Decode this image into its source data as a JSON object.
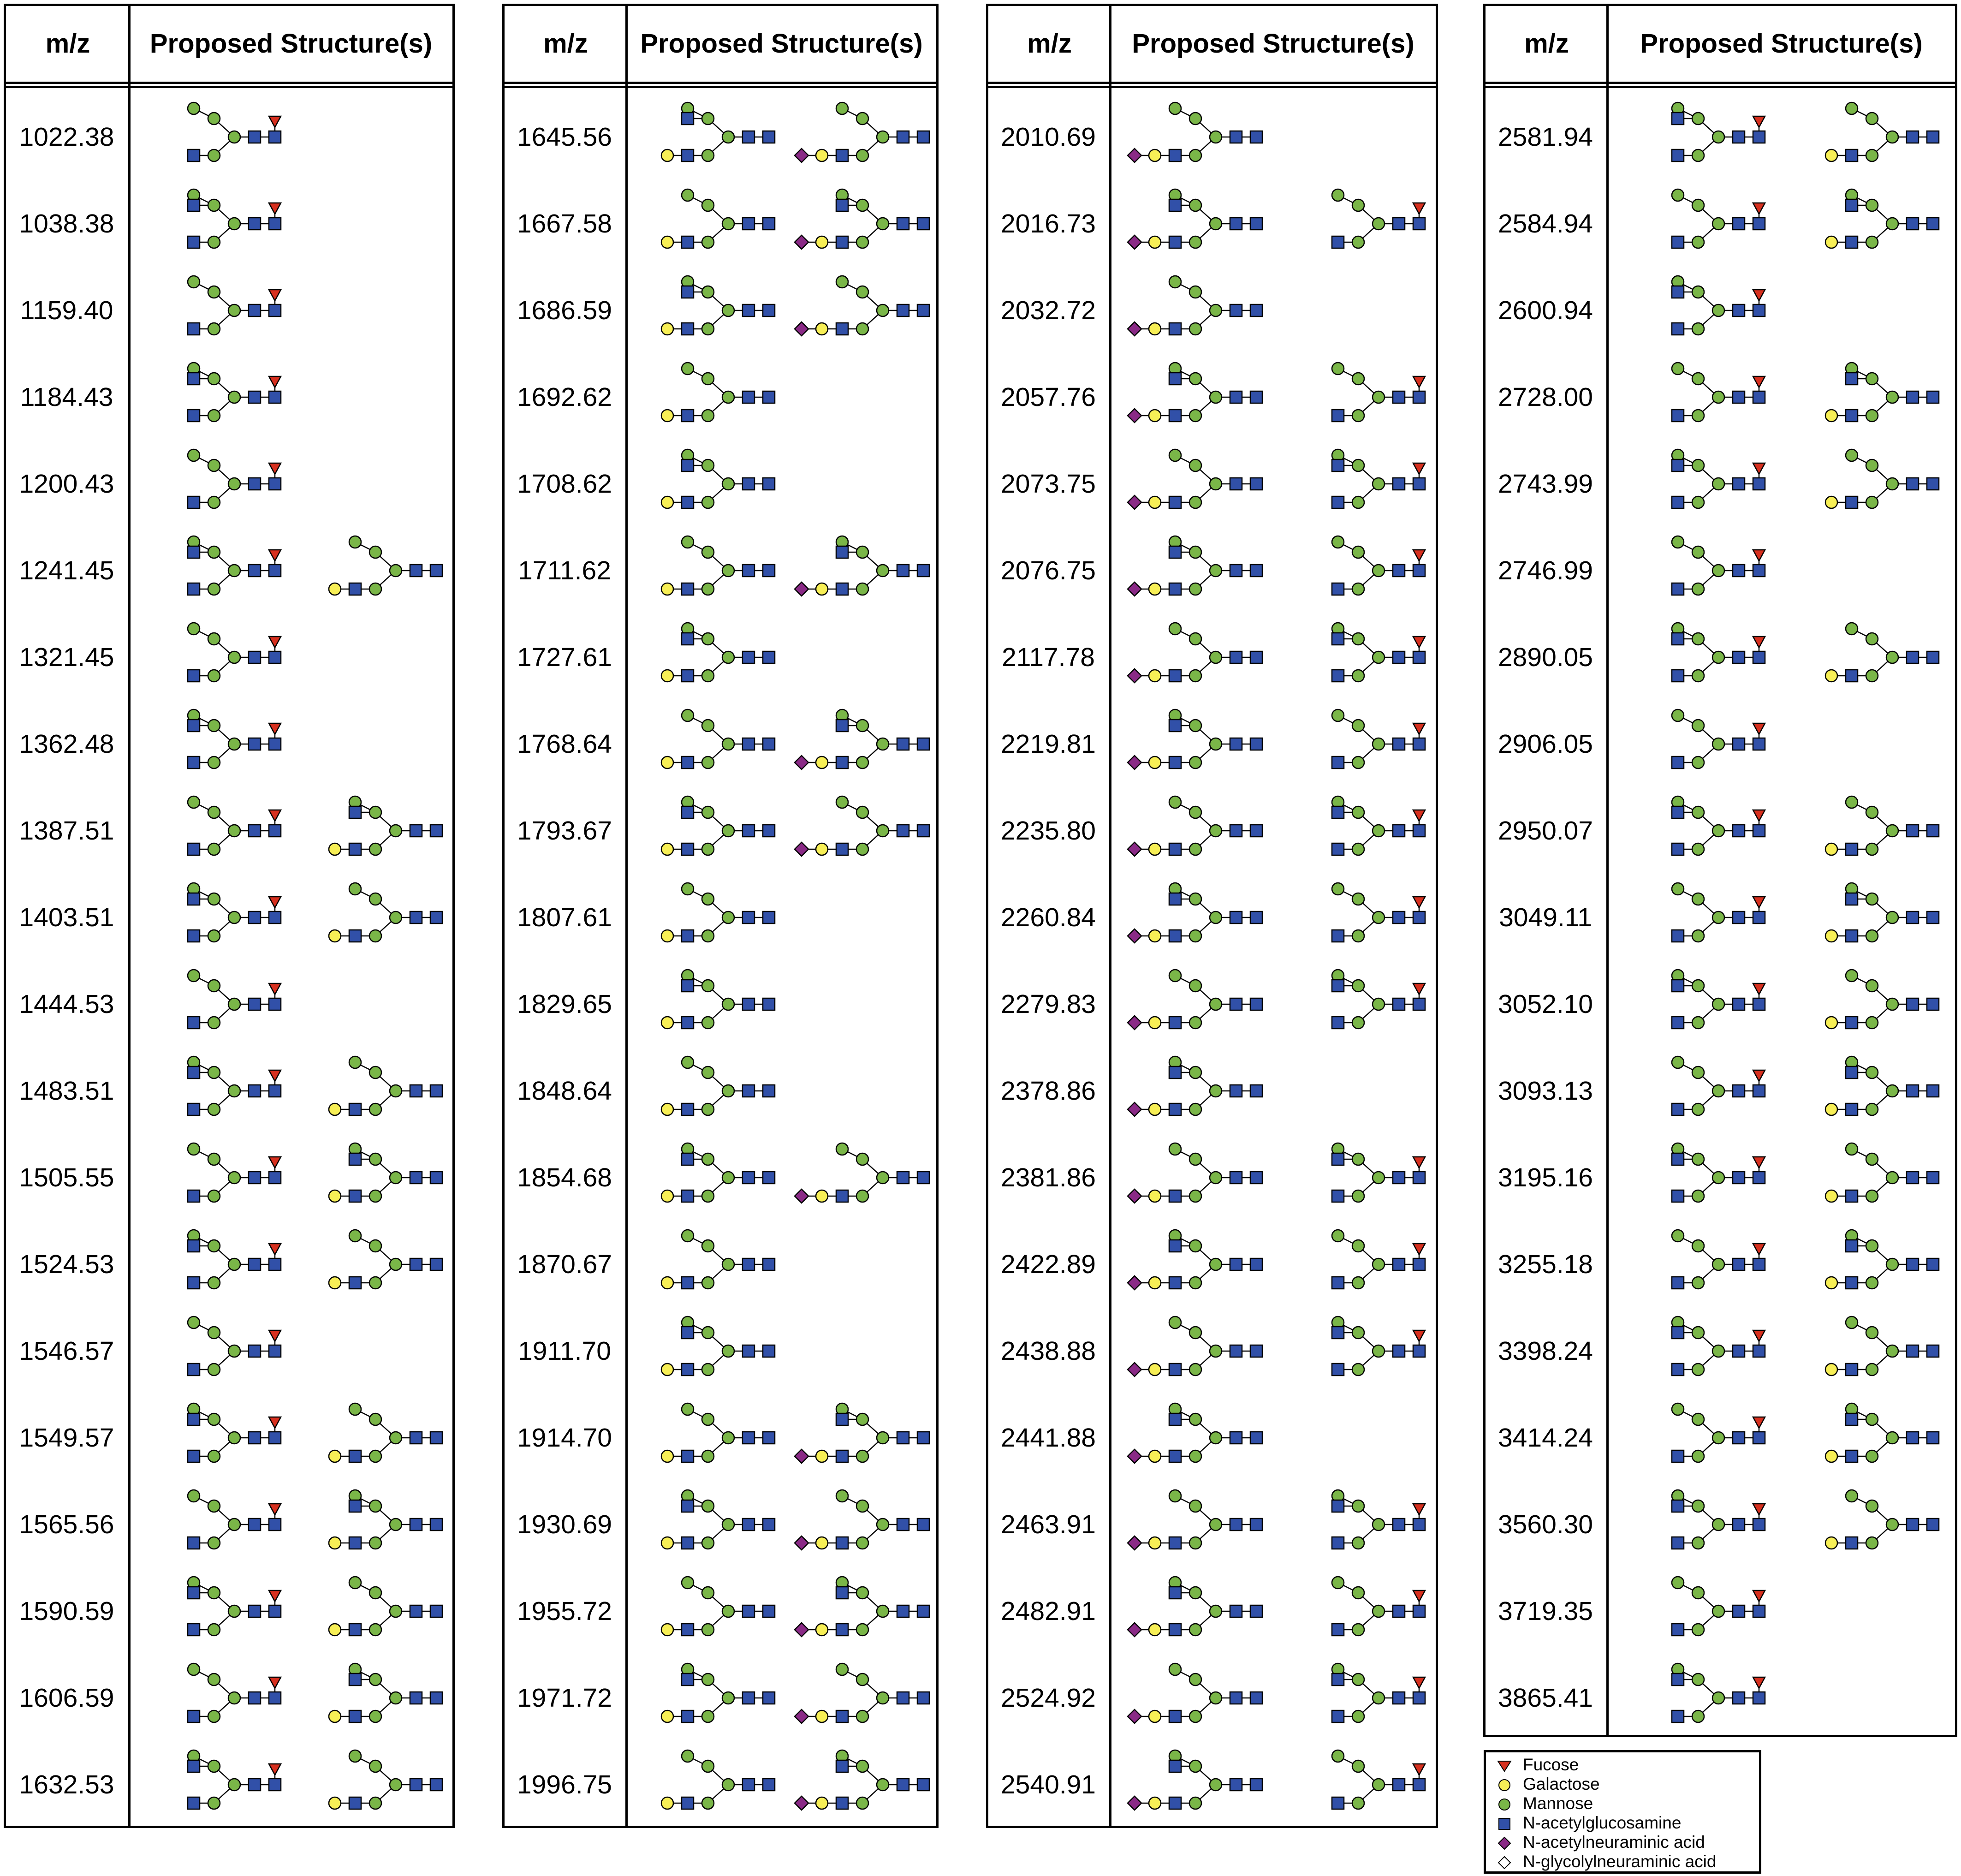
{
  "header": {
    "mz_label": "m/z",
    "structures_label": "Proposed Structure(s)"
  },
  "colors": {
    "fucose": "#d7301f",
    "galactose": "#f7ef56",
    "mannose": "#7ab648",
    "glcnac": "#3150a8",
    "neu5ac": "#8a2a86",
    "neu5gc": "#ffffff",
    "line": "#000000"
  },
  "columns": [
    {
      "rows": [
        {
          "mz": "1022.38",
          "structures": [
            "s1"
          ]
        },
        {
          "mz": "1038.38",
          "structures": [
            "s1"
          ]
        },
        {
          "mz": "1159.40",
          "structures": [
            "s1"
          ]
        },
        {
          "mz": "1184.43",
          "structures": [
            "s1"
          ]
        },
        {
          "mz": "1200.43",
          "structures": [
            "s1"
          ]
        },
        {
          "mz": "1241.45",
          "structures": [
            "s1",
            "s2"
          ]
        },
        {
          "mz": "1321.45",
          "structures": [
            "s1"
          ]
        },
        {
          "mz": "1362.48",
          "structures": [
            "s1"
          ]
        },
        {
          "mz": "1387.51",
          "structures": [
            "s1",
            "s2"
          ]
        },
        {
          "mz": "1403.51",
          "structures": [
            "s1",
            "s2"
          ]
        },
        {
          "mz": "1444.53",
          "structures": [
            "s1"
          ]
        },
        {
          "mz": "1483.51",
          "structures": [
            "s1",
            "s2"
          ]
        },
        {
          "mz": "1505.55",
          "structures": [
            "s1",
            "s2"
          ]
        },
        {
          "mz": "1524.53",
          "structures": [
            "s1",
            "s2"
          ]
        },
        {
          "mz": "1546.57",
          "structures": [
            "s1"
          ]
        },
        {
          "mz": "1549.57",
          "structures": [
            "s1",
            "s2"
          ]
        },
        {
          "mz": "1565.56",
          "structures": [
            "s1",
            "s2"
          ]
        },
        {
          "mz": "1590.59",
          "structures": [
            "s1",
            "s2"
          ]
        },
        {
          "mz": "1606.59",
          "structures": [
            "s1",
            "s2"
          ]
        },
        {
          "mz": "1632.53",
          "structures": [
            "s1",
            "s2"
          ]
        }
      ]
    },
    {
      "rows": [
        {
          "mz": "1645.56",
          "structures": [
            "s1",
            "s2"
          ]
        },
        {
          "mz": "1667.58",
          "structures": [
            "s1",
            "s2"
          ]
        },
        {
          "mz": "1686.59",
          "structures": [
            "s1",
            "s2"
          ]
        },
        {
          "mz": "1692.62",
          "structures": [
            "s1"
          ]
        },
        {
          "mz": "1708.62",
          "structures": [
            "s1"
          ]
        },
        {
          "mz": "1711.62",
          "structures": [
            "s1",
            "s2"
          ]
        },
        {
          "mz": "1727.61",
          "structures": [
            "s1"
          ]
        },
        {
          "mz": "1768.64",
          "structures": [
            "s1",
            "s2"
          ]
        },
        {
          "mz": "1793.67",
          "structures": [
            "s1",
            "s2"
          ]
        },
        {
          "mz": "1807.61",
          "structures": [
            "s1"
          ]
        },
        {
          "mz": "1829.65",
          "structures": [
            "s1"
          ]
        },
        {
          "mz": "1848.64",
          "structures": [
            "s1"
          ]
        },
        {
          "mz": "1854.68",
          "structures": [
            "s1",
            "s2"
          ]
        },
        {
          "mz": "1870.67",
          "structures": [
            "s1"
          ]
        },
        {
          "mz": "1911.70",
          "structures": [
            "s1"
          ]
        },
        {
          "mz": "1914.70",
          "structures": [
            "s1",
            "s2"
          ]
        },
        {
          "mz": "1930.69",
          "structures": [
            "s1",
            "s2"
          ]
        },
        {
          "mz": "1955.72",
          "structures": [
            "s1",
            "s2"
          ]
        },
        {
          "mz": "1971.72",
          "structures": [
            "s1",
            "s2"
          ]
        },
        {
          "mz": "1996.75",
          "structures": [
            "s1",
            "s2"
          ]
        }
      ]
    },
    {
      "rows": [
        {
          "mz": "2010.69",
          "structures": [
            "s1"
          ]
        },
        {
          "mz": "2016.73",
          "structures": [
            "s1",
            "s2"
          ]
        },
        {
          "mz": "2032.72",
          "structures": [
            "s1"
          ]
        },
        {
          "mz": "2057.76",
          "structures": [
            "s1",
            "s2"
          ]
        },
        {
          "mz": "2073.75",
          "structures": [
            "s1",
            "s2"
          ]
        },
        {
          "mz": "2076.75",
          "structures": [
            "s1",
            "s2"
          ]
        },
        {
          "mz": "2117.78",
          "structures": [
            "s1",
            "s2"
          ]
        },
        {
          "mz": "2219.81",
          "structures": [
            "s1",
            "s2"
          ]
        },
        {
          "mz": "2235.80",
          "structures": [
            "s1",
            "s2"
          ]
        },
        {
          "mz": "2260.84",
          "structures": [
            "s1",
            "s2"
          ]
        },
        {
          "mz": "2279.83",
          "structures": [
            "s1",
            "s2"
          ]
        },
        {
          "mz": "2378.86",
          "structures": [
            "s1"
          ]
        },
        {
          "mz": "2381.86",
          "structures": [
            "s1",
            "s2"
          ]
        },
        {
          "mz": "2422.89",
          "structures": [
            "s1",
            "s2"
          ]
        },
        {
          "mz": "2438.88",
          "structures": [
            "s1",
            "s2"
          ]
        },
        {
          "mz": "2441.88",
          "structures": [
            "s1"
          ]
        },
        {
          "mz": "2463.91",
          "structures": [
            "s1",
            "s2"
          ]
        },
        {
          "mz": "2482.91",
          "structures": [
            "s1",
            "s2"
          ]
        },
        {
          "mz": "2524.92",
          "structures": [
            "s1",
            "s2"
          ]
        },
        {
          "mz": "2540.91",
          "structures": [
            "s1",
            "s2"
          ]
        }
      ]
    },
    {
      "rows": [
        {
          "mz": "2581.94",
          "structures": [
            "s1",
            "s2"
          ]
        },
        {
          "mz": "2584.94",
          "structures": [
            "s1",
            "s2"
          ]
        },
        {
          "mz": "2600.94",
          "structures": [
            "s1"
          ]
        },
        {
          "mz": "2728.00",
          "structures": [
            "s1",
            "s2"
          ]
        },
        {
          "mz": "2743.99",
          "structures": [
            "s1",
            "s2"
          ]
        },
        {
          "mz": "2746.99",
          "structures": [
            "s1"
          ]
        },
        {
          "mz": "2890.05",
          "structures": [
            "s1",
            "s2"
          ]
        },
        {
          "mz": "2906.05",
          "structures": [
            "s1"
          ]
        },
        {
          "mz": "2950.07",
          "structures": [
            "s1",
            "s2"
          ]
        },
        {
          "mz": "3049.11",
          "structures": [
            "s1",
            "s2"
          ]
        },
        {
          "mz": "3052.10",
          "structures": [
            "s1",
            "s2"
          ]
        },
        {
          "mz": "3093.13",
          "structures": [
            "s1",
            "s2"
          ]
        },
        {
          "mz": "3195.16",
          "structures": [
            "s1",
            "s2"
          ]
        },
        {
          "mz": "3255.18",
          "structures": [
            "s1",
            "s2"
          ]
        },
        {
          "mz": "3398.24",
          "structures": [
            "s1",
            "s2"
          ]
        },
        {
          "mz": "3414.24",
          "structures": [
            "s1",
            "s2"
          ]
        },
        {
          "mz": "3560.30",
          "structures": [
            "s1",
            "s2"
          ]
        },
        {
          "mz": "3719.35",
          "structures": [
            "s1"
          ]
        },
        {
          "mz": "3865.41",
          "structures": [
            "s1"
          ]
        }
      ]
    }
  ],
  "legend": [
    {
      "label": "Fucose",
      "symbol": "red-triangle"
    },
    {
      "label": "Galactose",
      "symbol": "yellow-circle"
    },
    {
      "label": "Mannose",
      "symbol": "green-circle"
    },
    {
      "label": "N-acetylglucosamine",
      "symbol": "blue-square"
    },
    {
      "label": "N-acetylneuraminic acid",
      "symbol": "purple-diamond"
    },
    {
      "label": "N-glycolylneuraminic acid",
      "symbol": "white-diamond"
    }
  ]
}
